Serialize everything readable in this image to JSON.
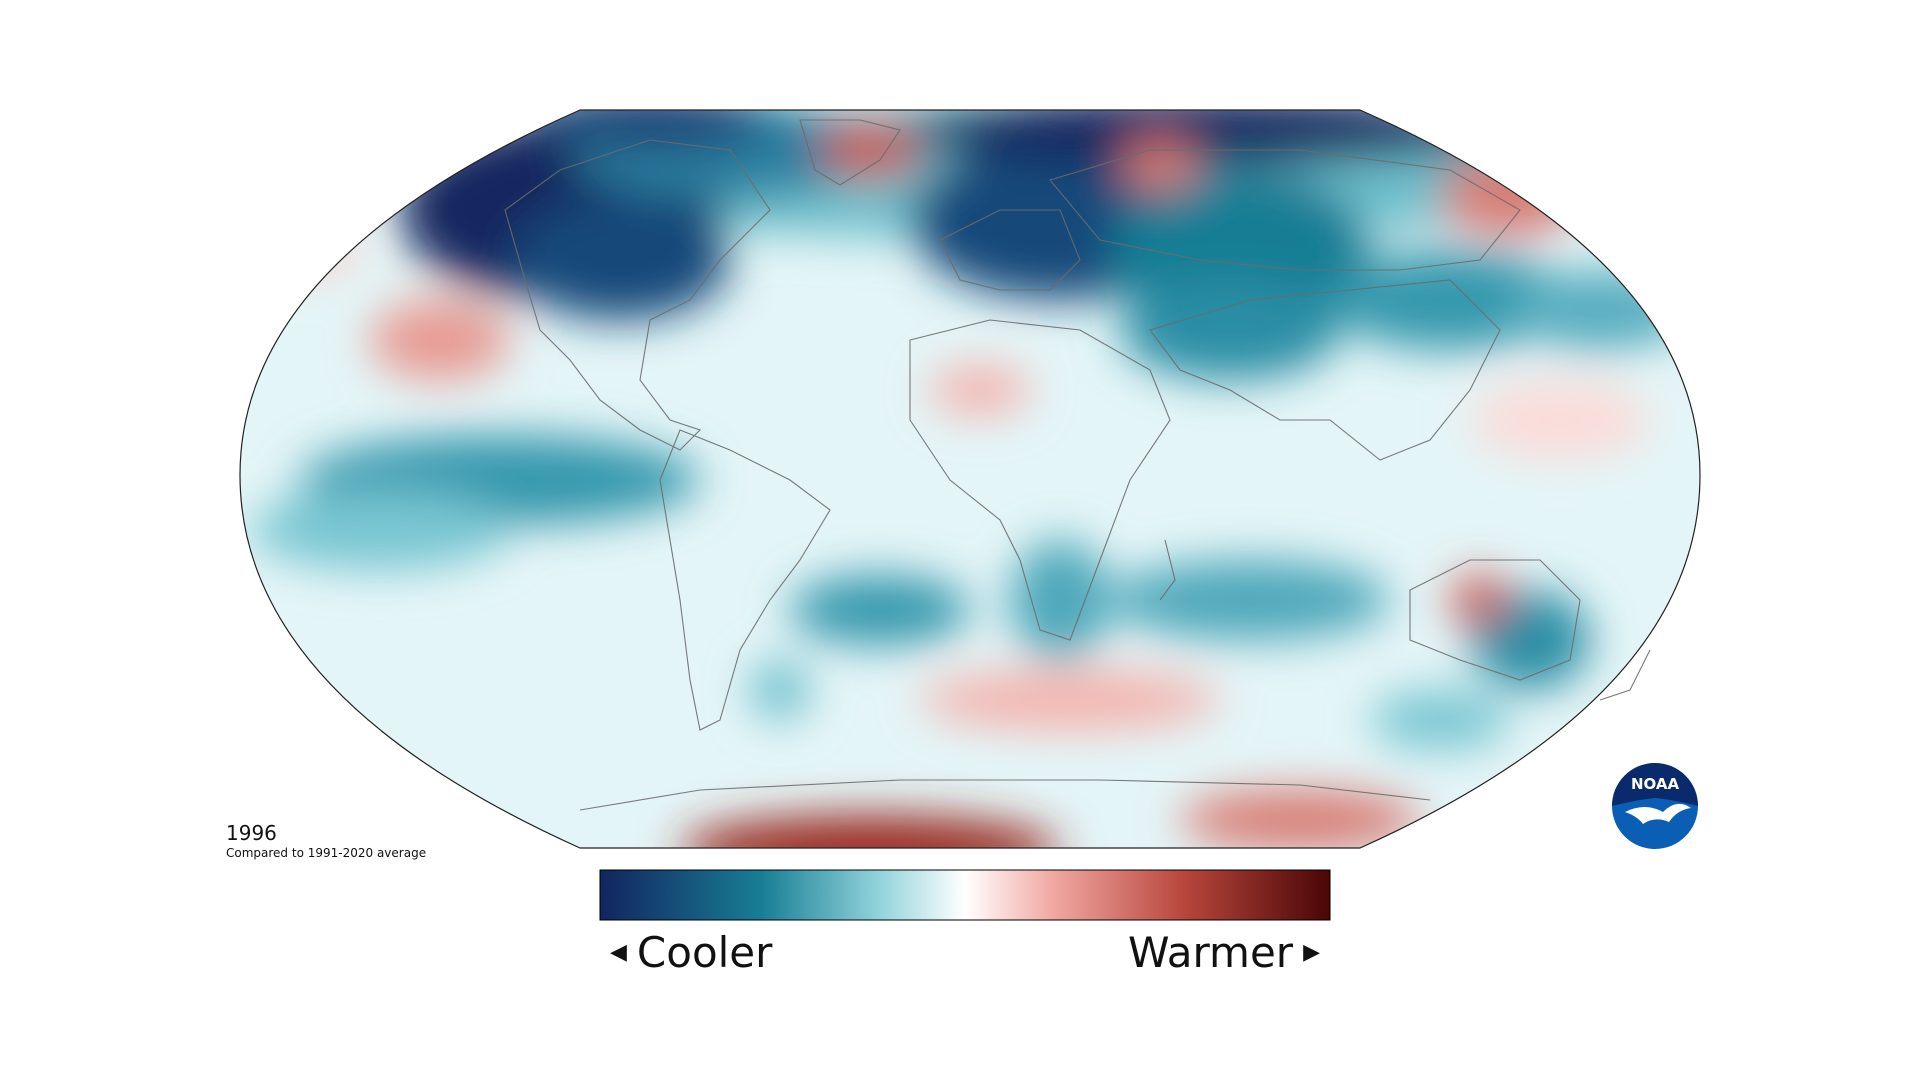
{
  "map": {
    "year": "1996",
    "subtitle": "Compared to 1991-2020 average",
    "projection": "Robinson world map",
    "colors": {
      "cold_extreme": "#12255e",
      "cold": "#187d94",
      "cool": "#8fd2da",
      "neutral": "#ffffff",
      "warm": "#f0a8a2",
      "hot": "#b8463c",
      "hot_extreme": "#4a0606"
    }
  },
  "legend": {
    "cooler_label": "Cooler",
    "warmer_label": "Warmer",
    "left_arrow": "◀",
    "right_arrow": "▶"
  },
  "logo": {
    "text": "NOAA",
    "primary_color": "#0a5fb4",
    "dark_color": "#0b2a6b"
  }
}
